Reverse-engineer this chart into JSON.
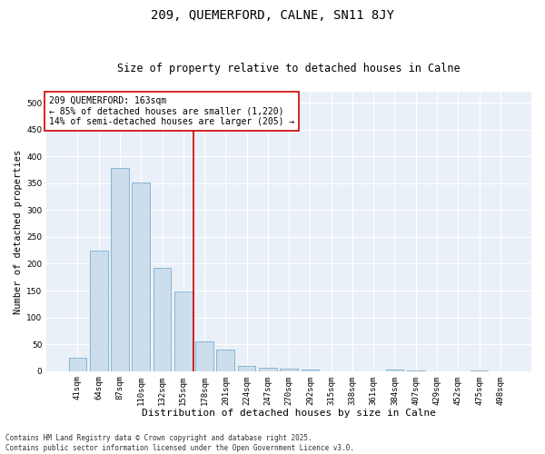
{
  "title": "209, QUEMERFORD, CALNE, SN11 8JY",
  "subtitle": "Size of property relative to detached houses in Calne",
  "xlabel": "Distribution of detached houses by size in Calne",
  "ylabel": "Number of detached properties",
  "categories": [
    "41sqm",
    "64sqm",
    "87sqm",
    "110sqm",
    "132sqm",
    "155sqm",
    "178sqm",
    "201sqm",
    "224sqm",
    "247sqm",
    "270sqm",
    "292sqm",
    "315sqm",
    "338sqm",
    "361sqm",
    "384sqm",
    "407sqm",
    "429sqm",
    "452sqm",
    "475sqm",
    "498sqm"
  ],
  "values": [
    25,
    225,
    378,
    352,
    193,
    148,
    55,
    40,
    10,
    7,
    4,
    3,
    0,
    0,
    0,
    3,
    2,
    0,
    0,
    2,
    0
  ],
  "bar_color": "#ccdded",
  "bar_edgecolor": "#7aaecc",
  "vline_x": 5.5,
  "vline_color": "#cc0000",
  "annotation_text": "209 QUEMERFORD: 163sqm\n← 85% of detached houses are smaller (1,220)\n14% of semi-detached houses are larger (205) →",
  "annotation_box_color": "#ffffff",
  "annotation_box_edgecolor": "#cc0000",
  "ylim": [
    0,
    520
  ],
  "yticks": [
    0,
    50,
    100,
    150,
    200,
    250,
    300,
    350,
    400,
    450,
    500
  ],
  "axes_bg": "#eaf0f8",
  "grid_color": "#ffffff",
  "fig_bg": "#ffffff",
  "footer_line1": "Contains HM Land Registry data © Crown copyright and database right 2025.",
  "footer_line2": "Contains public sector information licensed under the Open Government Licence v3.0.",
  "title_fontsize": 10,
  "subtitle_fontsize": 8.5,
  "xlabel_fontsize": 8,
  "ylabel_fontsize": 7.5,
  "tick_fontsize": 6.5,
  "ann_fontsize": 7,
  "footer_fontsize": 5.5
}
